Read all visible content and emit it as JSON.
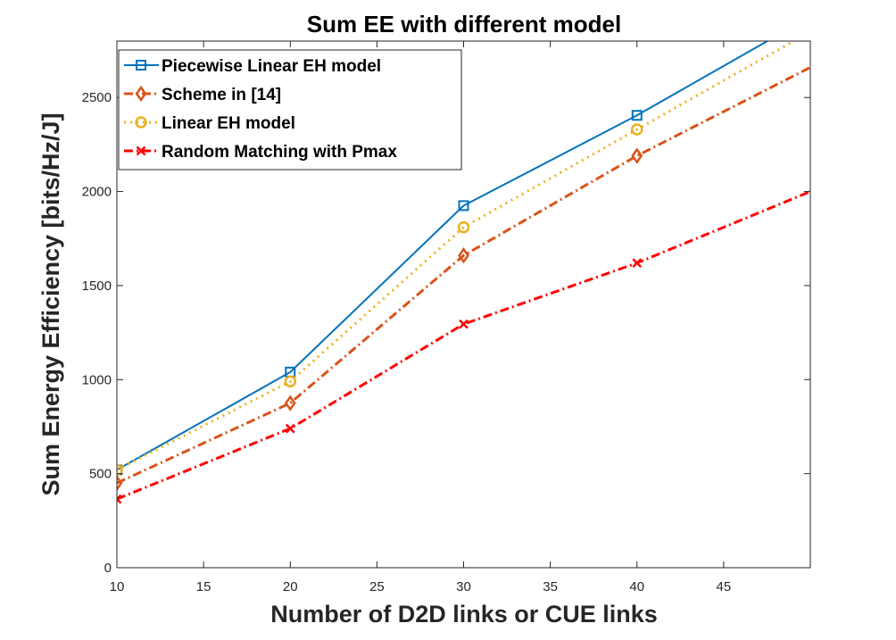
{
  "chart_data": {
    "type": "line",
    "title": "Sum EE with different model",
    "xlabel": "Number of D2D links or CUE links",
    "ylabel": "Sum Energy Efficiency [bits/Hz/J]",
    "xlim": [
      10,
      50
    ],
    "ylim": [
      0,
      2800
    ],
    "xticks": [
      10,
      15,
      20,
      25,
      30,
      35,
      40,
      45
    ],
    "yticks": [
      0,
      500,
      1000,
      1500,
      2000,
      2500
    ],
    "grid": false,
    "legend_position": "top-left",
    "series": [
      {
        "name": "Piecewise Linear EH model",
        "color": "#0072BD",
        "line_style": "solid",
        "marker": "square",
        "x": [
          10,
          20,
          30,
          40,
          50
        ],
        "y": [
          520,
          1040,
          1925,
          2405,
          2930
        ],
        "marker_x": [
          10,
          20,
          30,
          40
        ]
      },
      {
        "name": "Scheme in [14]",
        "color": "#D95319",
        "line_style": "dashdot",
        "marker": "diamond",
        "x": [
          10,
          20,
          30,
          40,
          50
        ],
        "y": [
          450,
          875,
          1660,
          2190,
          2660
        ],
        "marker_x": [
          10,
          20,
          30,
          40
        ]
      },
      {
        "name": "Linear EH model",
        "color": "#EDB120",
        "line_style": "dotted",
        "marker": "circle",
        "x": [
          10,
          20,
          30,
          40,
          50
        ],
        "y": [
          520,
          990,
          1810,
          2330,
          2850
        ],
        "marker_x": [
          10,
          20,
          30,
          40
        ]
      },
      {
        "name": "Random Matching with Pmax",
        "color": "#FF0000",
        "line_style": "dashdot",
        "marker": "x",
        "x": [
          10,
          20,
          30,
          40,
          50
        ],
        "y": [
          365,
          740,
          1295,
          1620,
          2000
        ],
        "marker_x": [
          10,
          20,
          30,
          40
        ]
      }
    ]
  }
}
